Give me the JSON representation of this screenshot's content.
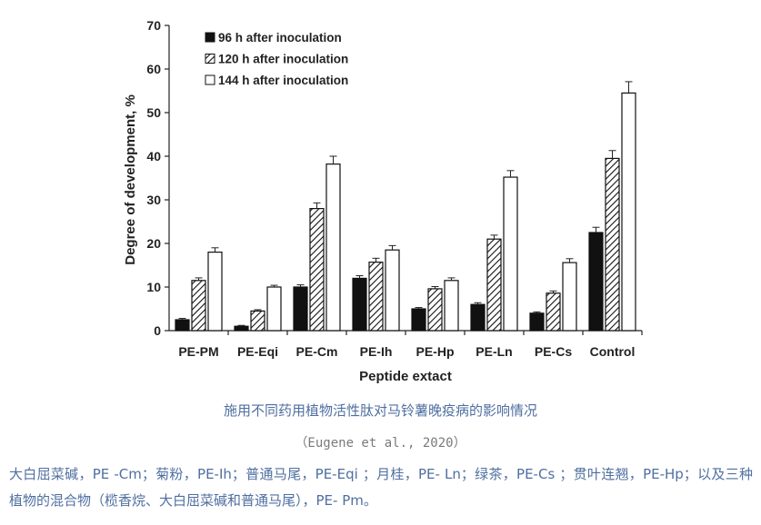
{
  "chart_data": {
    "type": "bar",
    "categories": [
      "PE-PM",
      "PE-Eqi",
      "PE-Cm",
      "PE-Ih",
      "PE-Hp",
      "PE-Ln",
      "PE-Cs",
      "Control"
    ],
    "series": [
      {
        "name": "96 h after inoculation",
        "values": [
          2.5,
          1.0,
          10.0,
          12.0,
          5.0,
          6.0,
          4.0,
          22.5
        ],
        "errors": [
          0.3,
          0.2,
          0.5,
          0.6,
          0.3,
          0.4,
          0.3,
          1.2
        ],
        "fill": "solid-black"
      },
      {
        "name": "120 h after inoculation",
        "values": [
          11.5,
          4.5,
          28.0,
          15.7,
          9.6,
          21.0,
          8.6,
          39.5
        ],
        "errors": [
          0.6,
          0.3,
          1.3,
          0.9,
          0.5,
          0.9,
          0.5,
          1.8
        ],
        "fill": "diagonal-hatch"
      },
      {
        "name": "144 h after inoculation",
        "values": [
          18.0,
          10.0,
          38.2,
          18.5,
          11.5,
          35.2,
          15.6,
          54.5
        ],
        "errors": [
          1.0,
          0.4,
          1.8,
          1.0,
          0.6,
          1.5,
          0.9,
          2.6
        ],
        "fill": "white"
      }
    ],
    "xlabel": "Peptide extact",
    "ylabel": "Degree of development, %",
    "ylim": [
      0,
      70
    ],
    "yticks": [
      0,
      10,
      20,
      30,
      40,
      50,
      60,
      70
    ],
    "grid": false,
    "legend_position": "top-left"
  },
  "caption": {
    "title": "施用不同药用植物活性肽对马铃薯晚疫病的影响情况",
    "source": "（Eugene et al., 2020）",
    "note": "大白屈菜碱，PE -Cm；菊粉，PE-Ih；普通马尾，PE-Eqi ；月桂，PE- Ln；绿茶，PE-Cs ；贯叶连翘，PE-Hp；以及三种植物的混合物（榄香烷、大白屈菜碱和普通马尾），PE- Pm。"
  },
  "colors": {
    "bar_dark": "#111111",
    "bar_outline": "#111111",
    "caption_text": "#4f6fa0",
    "source_text": "#7a7a7a"
  }
}
